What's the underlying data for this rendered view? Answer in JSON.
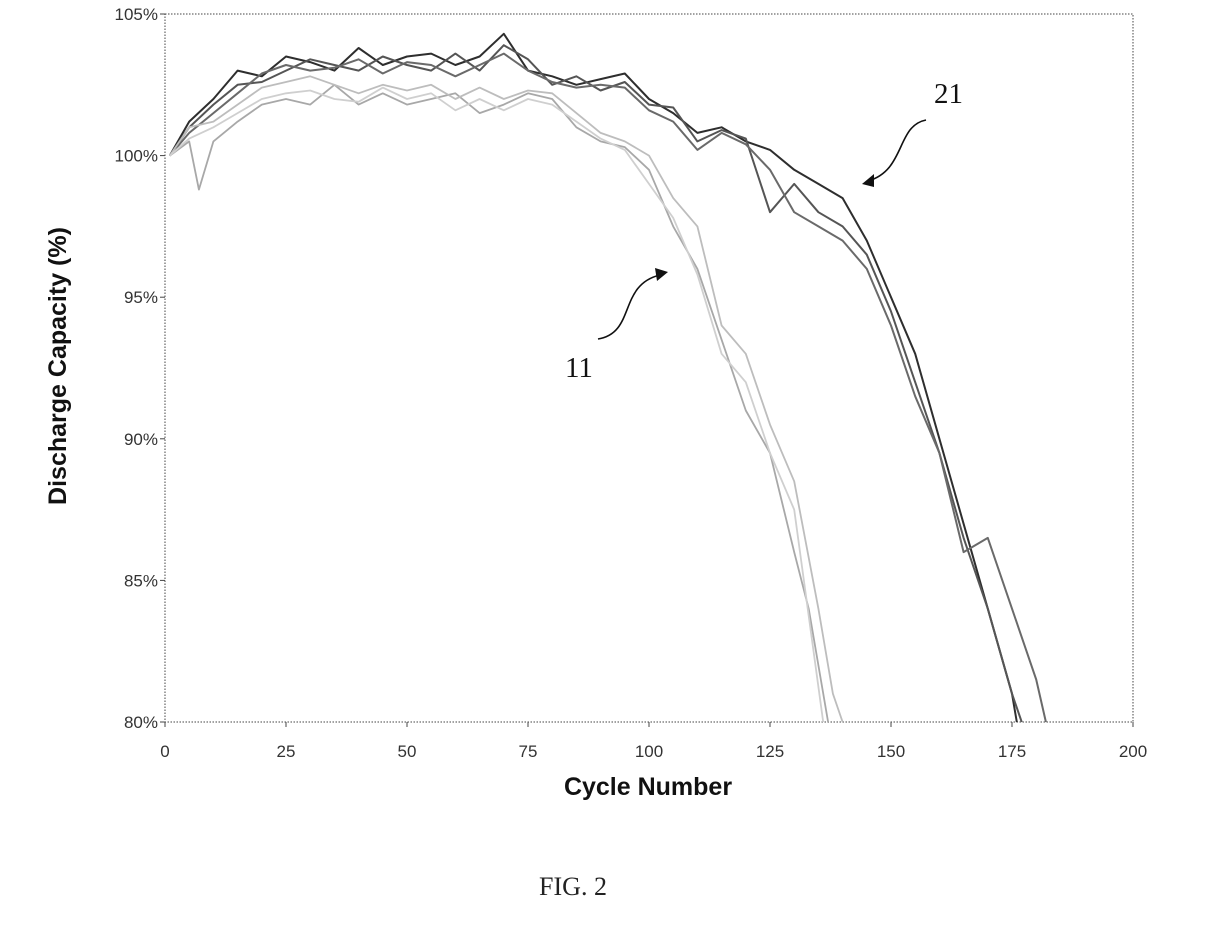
{
  "figure_caption": "FIG. 2",
  "chart_data": {
    "type": "line",
    "title": "",
    "xlabel": "Cycle Number",
    "ylabel": "Discharge Capacity (%)",
    "xlim": [
      0,
      200
    ],
    "ylim": [
      80,
      105
    ],
    "x_ticks": [
      "0",
      "25",
      "50",
      "75",
      "100",
      "125",
      "150",
      "175",
      "200"
    ],
    "y_ticks": [
      "80%",
      "85%",
      "90%",
      "95%",
      "100%",
      "105%"
    ],
    "grid": false,
    "legend": "none",
    "annotations": [
      {
        "text": "21",
        "points_to_cycle": 144,
        "points_to_value": 99.5
      },
      {
        "text": "11",
        "points_to_cycle": 104,
        "points_to_value": 96.2
      }
    ],
    "colors": {
      "group_21": "#3a3a3a",
      "group_11": "#b0b0b0",
      "axis": "#444444"
    },
    "series": [
      {
        "group": "21",
        "shade": "#2e2e2e",
        "x": [
          1,
          5,
          10,
          15,
          20,
          25,
          30,
          35,
          40,
          45,
          50,
          55,
          60,
          65,
          70,
          75,
          80,
          85,
          90,
          95,
          100,
          105,
          110,
          115,
          120,
          125,
          130,
          135,
          140,
          145,
          150,
          155,
          160,
          165,
          170,
          175,
          176
        ],
        "y": [
          100.0,
          101.2,
          102.0,
          103.0,
          102.8,
          103.5,
          103.3,
          103.0,
          103.8,
          103.2,
          103.5,
          103.6,
          103.2,
          103.5,
          104.3,
          103.0,
          102.8,
          102.5,
          102.7,
          102.9,
          102.0,
          101.5,
          100.8,
          101.0,
          100.5,
          100.2,
          99.5,
          99.0,
          98.5,
          97.0,
          95.0,
          93.0,
          90.0,
          87.0,
          84.0,
          81.0,
          80.0
        ]
      },
      {
        "group": "21",
        "shade": "#555555",
        "x": [
          1,
          5,
          10,
          15,
          20,
          25,
          30,
          35,
          40,
          45,
          50,
          55,
          60,
          65,
          70,
          75,
          80,
          85,
          90,
          95,
          100,
          105,
          110,
          115,
          120,
          125,
          130,
          135,
          140,
          145,
          150,
          155,
          160,
          165,
          170,
          175,
          177
        ],
        "y": [
          100.0,
          101.0,
          101.8,
          102.5,
          102.6,
          103.0,
          103.4,
          103.2,
          103.0,
          103.5,
          103.2,
          103.0,
          103.6,
          103.0,
          103.9,
          103.4,
          102.5,
          102.8,
          102.3,
          102.6,
          101.8,
          101.7,
          100.5,
          100.9,
          100.6,
          98.0,
          99.0,
          98.0,
          97.5,
          96.5,
          94.5,
          92.0,
          89.5,
          86.5,
          84.0,
          81.0,
          80.0
        ]
      },
      {
        "group": "21",
        "shade": "#6a6a6a",
        "x": [
          1,
          5,
          10,
          15,
          20,
          25,
          30,
          35,
          40,
          45,
          50,
          55,
          60,
          65,
          70,
          75,
          80,
          85,
          90,
          95,
          100,
          105,
          110,
          115,
          120,
          125,
          130,
          135,
          140,
          145,
          150,
          155,
          160,
          165,
          170,
          175,
          180,
          182
        ],
        "y": [
          100.0,
          100.8,
          101.5,
          102.2,
          102.9,
          103.2,
          103.0,
          103.1,
          103.4,
          102.9,
          103.3,
          103.2,
          102.8,
          103.2,
          103.6,
          103.0,
          102.6,
          102.4,
          102.5,
          102.4,
          101.6,
          101.2,
          100.2,
          100.8,
          100.4,
          99.5,
          98.0,
          97.5,
          97.0,
          96.0,
          94.0,
          91.5,
          89.5,
          86.0,
          86.5,
          84.0,
          81.5,
          80.0
        ]
      },
      {
        "group": "11",
        "shade": "#a8a8a8",
        "x": [
          1,
          5,
          7,
          10,
          15,
          20,
          25,
          30,
          35,
          40,
          45,
          50,
          55,
          60,
          65,
          70,
          75,
          80,
          85,
          90,
          95,
          100,
          105,
          110,
          115,
          120,
          125,
          130,
          133,
          135,
          137
        ],
        "y": [
          100.0,
          100.5,
          98.8,
          100.5,
          101.2,
          101.8,
          102.0,
          101.8,
          102.5,
          101.8,
          102.2,
          101.8,
          102.0,
          102.2,
          101.5,
          101.8,
          102.2,
          102.0,
          101.0,
          100.5,
          100.3,
          99.5,
          97.5,
          96.0,
          93.5,
          91.0,
          89.5,
          86.0,
          84.0,
          82.0,
          80.0
        ]
      },
      {
        "group": "11",
        "shade": "#bdbdbd",
        "x": [
          1,
          5,
          10,
          15,
          20,
          25,
          30,
          35,
          40,
          45,
          50,
          55,
          60,
          65,
          70,
          75,
          80,
          85,
          90,
          95,
          100,
          105,
          110,
          115,
          120,
          125,
          130,
          135,
          138,
          140
        ],
        "y": [
          100.0,
          101.0,
          101.2,
          101.8,
          102.4,
          102.6,
          102.8,
          102.5,
          102.2,
          102.5,
          102.3,
          102.5,
          102.0,
          102.4,
          102.0,
          102.3,
          102.2,
          101.5,
          100.8,
          100.5,
          100.0,
          98.5,
          97.5,
          94.0,
          93.0,
          90.5,
          88.5,
          84.0,
          81.0,
          80.0
        ]
      },
      {
        "group": "11",
        "shade": "#cfcfcf",
        "x": [
          1,
          5,
          10,
          15,
          20,
          25,
          30,
          35,
          40,
          45,
          50,
          55,
          60,
          65,
          70,
          75,
          80,
          85,
          90,
          95,
          100,
          105,
          110,
          115,
          120,
          125,
          130,
          136
        ],
        "y": [
          100.0,
          100.6,
          101.0,
          101.5,
          102.0,
          102.2,
          102.3,
          102.0,
          101.9,
          102.4,
          102.0,
          102.2,
          101.6,
          102.0,
          101.6,
          102.0,
          101.8,
          101.2,
          100.6,
          100.2,
          99.0,
          97.8,
          95.8,
          93.0,
          92.0,
          89.5,
          87.5,
          80.0
        ]
      }
    ]
  }
}
